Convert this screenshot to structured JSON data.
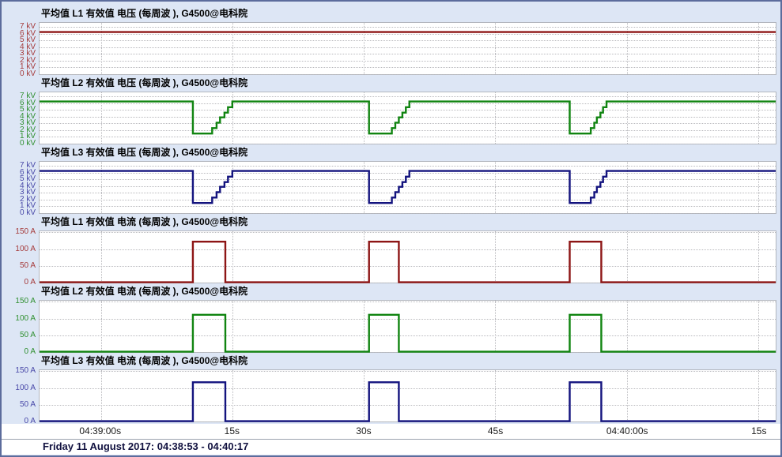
{
  "window": {
    "background": "#dde6f5",
    "border_color": "#5c6c9c",
    "footer_text": "Friday 11 August 2017: 04:38:53 - 04:40:17"
  },
  "style": {
    "grid_color": "#b9b9bd",
    "plot_background": "#ffffff",
    "plot_border": "#b2b6be"
  },
  "x_axis": {
    "range_s": [
      0,
      84
    ],
    "start_time": "04:38:53",
    "end_time": "04:40:17",
    "tick_positions_s": [
      7,
      22,
      37,
      52,
      67,
      82
    ],
    "tick_labels": [
      "04:39:00s",
      "15s",
      "30s",
      "45s",
      "04:40:00s",
      "15s"
    ]
  },
  "chart_data": [
    {
      "type": "line",
      "title": "平均值 L1 有效值 电压 (每周波 ), G4500@电科院",
      "unit": "kV",
      "line_color": "#8d1515",
      "label_color": "#a53a3a",
      "ylim": [
        0,
        7.6
      ],
      "y_ticks": [
        7,
        6,
        5,
        4,
        3,
        2,
        1,
        0
      ],
      "y_tick_labels": [
        "7 kV",
        "6 kV",
        "5 kV",
        "4 kV",
        "3 kV",
        "2 kV",
        "1 kV",
        "0 kV"
      ],
      "points": [
        [
          0,
          6.25
        ],
        [
          84,
          6.25
        ]
      ]
    },
    {
      "type": "line",
      "title": "平均值 L2 有效值 电压 (每周波 ), G4500@电科院",
      "unit": "kV",
      "line_color": "#108410",
      "label_color": "#2f8f2f",
      "ylim": [
        0,
        7.6
      ],
      "y_ticks": [
        7,
        6,
        5,
        4,
        3,
        2,
        1,
        0
      ],
      "y_tick_labels": [
        "7 kV",
        "6 kV",
        "5 kV",
        "4 kV",
        "3 kV",
        "2 kV",
        "1 kV",
        "0 kV"
      ],
      "points": [
        [
          0,
          6.25
        ],
        [
          17.5,
          6.25
        ],
        [
          17.5,
          1.5
        ],
        [
          19.7,
          1.5
        ],
        [
          19.7,
          2.3
        ],
        [
          20.2,
          2.3
        ],
        [
          20.2,
          3.1
        ],
        [
          20.6,
          3.1
        ],
        [
          20.6,
          3.9
        ],
        [
          21.1,
          3.9
        ],
        [
          21.1,
          4.6
        ],
        [
          21.5,
          4.6
        ],
        [
          21.5,
          5.4
        ],
        [
          22.0,
          5.4
        ],
        [
          22.0,
          6.25
        ],
        [
          37.6,
          6.25
        ],
        [
          37.6,
          1.5
        ],
        [
          40.2,
          1.5
        ],
        [
          40.2,
          2.3
        ],
        [
          40.6,
          2.3
        ],
        [
          40.6,
          3.1
        ],
        [
          41.0,
          3.1
        ],
        [
          41.0,
          3.9
        ],
        [
          41.4,
          3.9
        ],
        [
          41.4,
          4.6
        ],
        [
          41.8,
          4.6
        ],
        [
          41.8,
          5.4
        ],
        [
          42.2,
          5.4
        ],
        [
          42.2,
          6.25
        ],
        [
          60.5,
          6.25
        ],
        [
          60.5,
          1.5
        ],
        [
          62.9,
          1.5
        ],
        [
          62.9,
          2.3
        ],
        [
          63.3,
          2.3
        ],
        [
          63.3,
          3.1
        ],
        [
          63.6,
          3.1
        ],
        [
          63.6,
          3.9
        ],
        [
          64.0,
          3.9
        ],
        [
          64.0,
          4.6
        ],
        [
          64.3,
          4.6
        ],
        [
          64.3,
          5.4
        ],
        [
          64.7,
          5.4
        ],
        [
          64.7,
          6.25
        ],
        [
          84,
          6.25
        ]
      ]
    },
    {
      "type": "line",
      "title": "平均值 L3 有效值 电压 (每周波 ), G4500@电科院",
      "unit": "kV",
      "line_color": "#13137e",
      "label_color": "#4848a8",
      "ylim": [
        0,
        7.6
      ],
      "y_ticks": [
        7,
        6,
        5,
        4,
        3,
        2,
        1,
        0
      ],
      "y_tick_labels": [
        "7 kV",
        "6 kV",
        "5 kV",
        "4 kV",
        "3 kV",
        "2 kV",
        "1 kV",
        "0 kV"
      ],
      "points": [
        [
          0,
          6.25
        ],
        [
          17.5,
          6.25
        ],
        [
          17.5,
          1.5
        ],
        [
          19.7,
          1.5
        ],
        [
          19.7,
          2.3
        ],
        [
          20.2,
          2.3
        ],
        [
          20.2,
          3.1
        ],
        [
          20.6,
          3.1
        ],
        [
          20.6,
          3.9
        ],
        [
          21.1,
          3.9
        ],
        [
          21.1,
          4.6
        ],
        [
          21.5,
          4.6
        ],
        [
          21.5,
          5.4
        ],
        [
          22.0,
          5.4
        ],
        [
          22.0,
          6.25
        ],
        [
          37.6,
          6.25
        ],
        [
          37.6,
          1.5
        ],
        [
          40.2,
          1.5
        ],
        [
          40.2,
          2.3
        ],
        [
          40.6,
          2.3
        ],
        [
          40.6,
          3.1
        ],
        [
          41.0,
          3.1
        ],
        [
          41.0,
          3.9
        ],
        [
          41.4,
          3.9
        ],
        [
          41.4,
          4.6
        ],
        [
          41.8,
          4.6
        ],
        [
          41.8,
          5.4
        ],
        [
          42.2,
          5.4
        ],
        [
          42.2,
          6.25
        ],
        [
          60.5,
          6.25
        ],
        [
          60.5,
          1.5
        ],
        [
          62.9,
          1.5
        ],
        [
          62.9,
          2.3
        ],
        [
          63.3,
          2.3
        ],
        [
          63.3,
          3.1
        ],
        [
          63.6,
          3.1
        ],
        [
          63.6,
          3.9
        ],
        [
          64.0,
          3.9
        ],
        [
          64.0,
          4.6
        ],
        [
          64.3,
          4.6
        ],
        [
          64.3,
          5.4
        ],
        [
          64.7,
          5.4
        ],
        [
          64.7,
          6.25
        ],
        [
          84,
          6.25
        ]
      ]
    },
    {
      "type": "line",
      "title": "平均值 L1 有效值 电流 (每周波 ), G4500@电科院",
      "unit": "A",
      "line_color": "#8d1515",
      "label_color": "#a53a3a",
      "ylim": [
        0,
        153
      ],
      "y_ticks": [
        150,
        100,
        50,
        0
      ],
      "y_tick_labels": [
        "150 A",
        "100 A",
        "50 A",
        "0 A"
      ],
      "points": [
        [
          0,
          1
        ],
        [
          17.5,
          1
        ],
        [
          17.5,
          122
        ],
        [
          21.2,
          122
        ],
        [
          21.2,
          1
        ],
        [
          37.6,
          1
        ],
        [
          37.6,
          122
        ],
        [
          41.0,
          122
        ],
        [
          41.0,
          1
        ],
        [
          60.5,
          1
        ],
        [
          60.5,
          122
        ],
        [
          64.1,
          122
        ],
        [
          64.1,
          1
        ],
        [
          84,
          1
        ]
      ]
    },
    {
      "type": "line",
      "title": "平均值 L2 有效值 电流 (每周波 ), G4500@电科院",
      "unit": "A",
      "line_color": "#108410",
      "label_color": "#2f8f2f",
      "ylim": [
        0,
        153
      ],
      "y_ticks": [
        150,
        100,
        50,
        0
      ],
      "y_tick_labels": [
        "150 A",
        "100 A",
        "50 A",
        "0 A"
      ],
      "points": [
        [
          0,
          1
        ],
        [
          17.5,
          1
        ],
        [
          17.5,
          111
        ],
        [
          21.2,
          111
        ],
        [
          21.2,
          1
        ],
        [
          37.6,
          1
        ],
        [
          37.6,
          111
        ],
        [
          41.0,
          111
        ],
        [
          41.0,
          1
        ],
        [
          60.5,
          1
        ],
        [
          60.5,
          111
        ],
        [
          64.1,
          111
        ],
        [
          64.1,
          1
        ],
        [
          84,
          1
        ]
      ]
    },
    {
      "type": "line",
      "title": "平均值 L3 有效值 电流 (每周波 ), G4500@电科院",
      "unit": "A",
      "line_color": "#13137e",
      "label_color": "#4848a8",
      "ylim": [
        0,
        153
      ],
      "y_ticks": [
        150,
        100,
        50,
        0
      ],
      "y_tick_labels": [
        "150 A",
        "100 A",
        "50 A",
        "0 A"
      ],
      "points": [
        [
          0,
          1
        ],
        [
          17.5,
          1
        ],
        [
          17.5,
          117
        ],
        [
          21.2,
          117
        ],
        [
          21.2,
          1
        ],
        [
          37.6,
          1
        ],
        [
          37.6,
          117
        ],
        [
          41.0,
          117
        ],
        [
          41.0,
          1
        ],
        [
          60.5,
          1
        ],
        [
          60.5,
          117
        ],
        [
          64.1,
          117
        ],
        [
          64.1,
          1
        ],
        [
          84,
          1
        ]
      ]
    }
  ]
}
